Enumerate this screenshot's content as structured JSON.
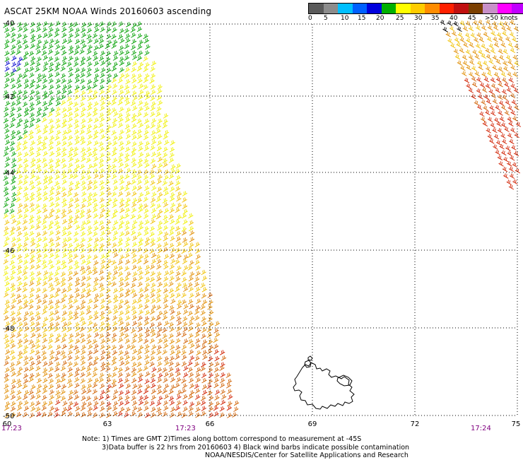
{
  "header": {
    "title": "ASCAT 25KM NOAA Winds 20160603 ascending"
  },
  "legend": {
    "colors": [
      "#5a5a5a",
      "#8c8c8c",
      "#00bfff",
      "#0060ff",
      "#0000dd",
      "#00b000",
      "#ffff00",
      "#ffcc00",
      "#ff8c00",
      "#ff2000",
      "#c01010",
      "#7b3f00",
      "#c890c8",
      "#ff00ff",
      "#c000ff",
      "#6000a0"
    ],
    "labels": [
      "0",
      "5",
      "10",
      "15",
      "20",
      "25",
      "30",
      "35",
      "40",
      "45",
      ">50 knots"
    ]
  },
  "map": {
    "lat_labels": [
      "-40",
      "-42",
      "-44",
      "-46",
      "-48",
      "-50"
    ],
    "lon_labels": [
      "60",
      "63",
      "66",
      "69",
      "72",
      "75"
    ],
    "time_labels": [
      "17:23",
      "17:23",
      "17:24"
    ],
    "barb_color_scale": {
      "green": "#00a000",
      "yellow": "#f0f000",
      "gold": "#f0c000",
      "orange": "#e08c00",
      "dark_orange": "#d06000",
      "red": "#d02000",
      "blue": "#0000cc",
      "black": "#000000"
    }
  },
  "notes": {
    "line1": "Note: 1) Times are GMT 2)Times along bottom correspond to measurement at -45S",
    "line2": "3)Data buffer is 22 hrs from 20160603 4) Black wind barbs indicate possible contamination",
    "line3": "NOAA/NESDIS/Center for Satellite Applications and Research"
  }
}
